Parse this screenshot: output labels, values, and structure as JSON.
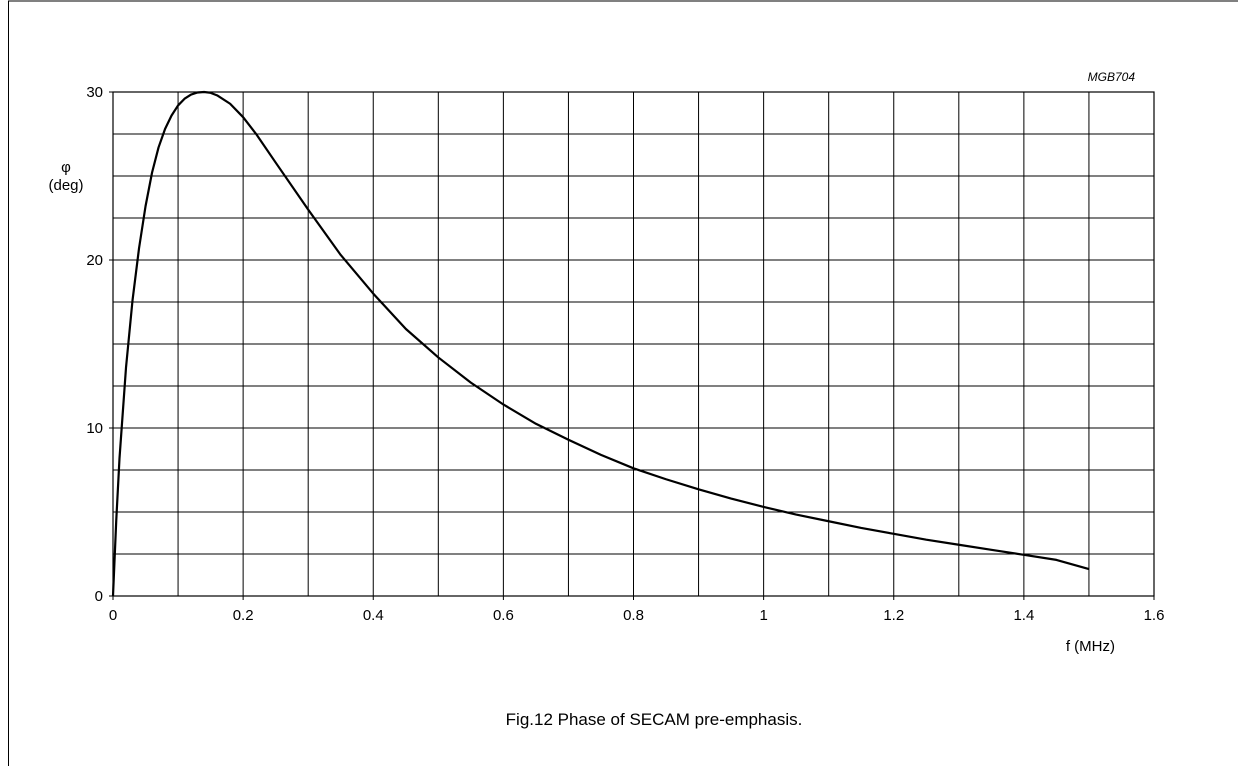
{
  "figure_code": "MGB704",
  "caption": "Fig.12  Phase of SECAM pre-emphasis.",
  "chart_data": {
    "type": "line",
    "xlabel": "f (MHz)",
    "ylabel_symbol": "φ",
    "ylabel_unit": "(deg)",
    "xlim": [
      0,
      1.6
    ],
    "ylim": [
      0,
      30
    ],
    "x_ticks": [
      0,
      0.2,
      0.4,
      0.6,
      0.8,
      1,
      1.2,
      1.4,
      1.6
    ],
    "x_tick_labels": [
      "0",
      "0.2",
      "0.4",
      "0.6",
      "0.8",
      "1",
      "1.2",
      "1.4",
      "1.6"
    ],
    "y_ticks": [
      0,
      10,
      20,
      30
    ],
    "y_tick_labels": [
      "0",
      "10",
      "20",
      "30"
    ],
    "x_minor_step": 0.1,
    "y_minor_step": 2.5,
    "grid": true,
    "line_color": "#000000",
    "series": [
      {
        "x": [
          0,
          0.005,
          0.01,
          0.02,
          0.03,
          0.04,
          0.05,
          0.06,
          0.07,
          0.08,
          0.09,
          0.1,
          0.11,
          0.12,
          0.13,
          0.14,
          0.15,
          0.16,
          0.18,
          0.2,
          0.22,
          0.25,
          0.3,
          0.35,
          0.4,
          0.45,
          0.5,
          0.55,
          0.6,
          0.65,
          0.7,
          0.75,
          0.8,
          0.85,
          0.9,
          0.95,
          1.0,
          1.05,
          1.1,
          1.15,
          1.2,
          1.25,
          1.3,
          1.35,
          1.4,
          1.45,
          1.5
        ],
        "y": [
          0,
          4.5,
          8.2,
          13.6,
          17.6,
          20.7,
          23.2,
          25.2,
          26.7,
          27.8,
          28.6,
          29.2,
          29.6,
          29.85,
          29.97,
          30.0,
          29.95,
          29.8,
          29.3,
          28.5,
          27.5,
          25.8,
          23.0,
          20.3,
          18.0,
          15.9,
          14.2,
          12.7,
          11.4,
          10.25,
          9.3,
          8.4,
          7.6,
          6.95,
          6.35,
          5.8,
          5.3,
          4.85,
          4.45,
          4.05,
          3.7,
          3.35,
          3.05,
          2.75,
          2.45,
          2.15,
          1.6
        ]
      }
    ]
  }
}
